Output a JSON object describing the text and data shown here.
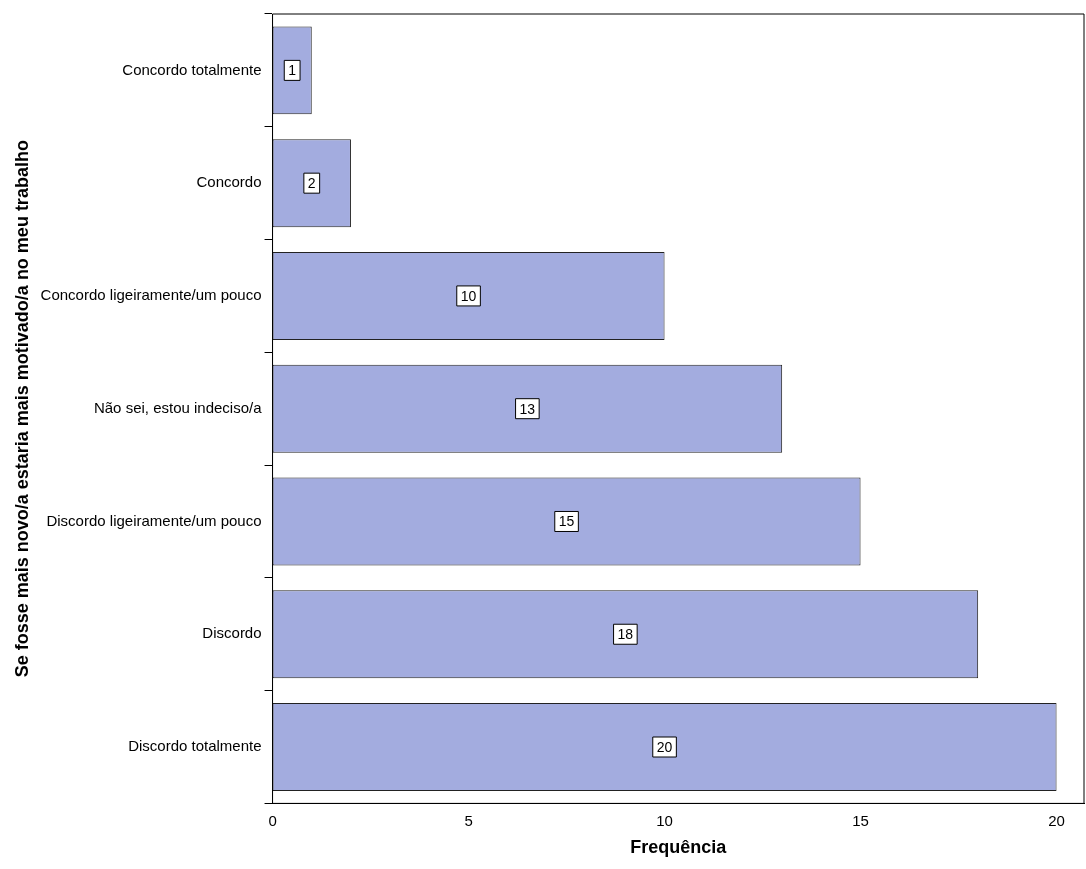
{
  "chart_data": {
    "type": "bar",
    "orientation": "horizontal",
    "xlabel": "Frequência",
    "ylabel": "Se fosse mais novo/a estaria mais motivado/a no meu trabalho",
    "categories": [
      "Concordo totalmente",
      "Concordo",
      "Concordo ligeiramente/um pouco",
      "Não sei, estou indeciso/a",
      "Discordo ligeiramente/um pouco",
      "Discordo",
      "Discordo totalmente"
    ],
    "values": [
      1,
      2,
      10,
      13,
      15,
      18,
      20
    ],
    "color": "#a3acdf",
    "xlim": [
      0,
      20.7
    ],
    "xticks": [
      0,
      5,
      10,
      15,
      20
    ],
    "grid": false,
    "legend": false,
    "data_labels": true
  }
}
